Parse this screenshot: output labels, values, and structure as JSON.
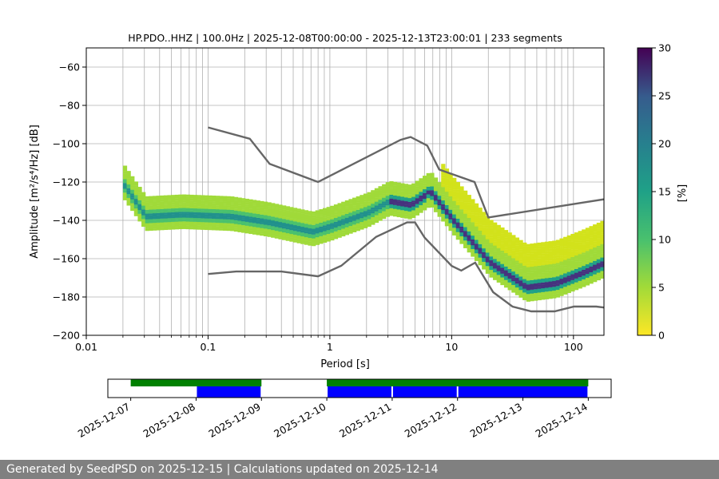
{
  "chart_data": {
    "type": "heatmap",
    "title": "HP.PDO..HHZ | 100.0Hz | 2025-12-08T00:00:00 - 2025-12-13T23:00:01 | 233 segments",
    "xlabel": "Period [s]",
    "ylabel": "Amplitude [m²/s⁴/Hz] [dB]",
    "x_scale": "log",
    "xlim": [
      0.01,
      178
    ],
    "ylim": [
      -200,
      -50
    ],
    "x_ticks": [
      0.01,
      0.1,
      1,
      10,
      100
    ],
    "x_tick_labels": [
      "0.01",
      "0.1",
      "1",
      "10",
      "100"
    ],
    "y_ticks": [
      -200,
      -180,
      -160,
      -140,
      -120,
      -100,
      -80,
      -60
    ],
    "y_tick_labels": [
      "−200",
      "−180",
      "−160",
      "−140",
      "−120",
      "−100",
      "−80",
      "−60"
    ],
    "grid": true,
    "colorbar": {
      "label": "[%]",
      "range": [
        0,
        30
      ],
      "ticks": [
        0,
        5,
        10,
        15,
        20,
        25,
        30
      ],
      "tick_labels": [
        "0",
        "5",
        "10",
        "15",
        "20",
        "25",
        "30"
      ],
      "colormap": "viridis"
    },
    "noise_models": [
      {
        "points": [
          [
            0.1,
            -91.5
          ],
          [
            0.22,
            -97.4
          ],
          [
            0.32,
            -110.5
          ],
          [
            0.8,
            -120.0
          ],
          [
            3.8,
            -98.0
          ],
          [
            4.6,
            -96.5
          ],
          [
            6.3,
            -101.0
          ],
          [
            7.9,
            -113.5
          ],
          [
            15.4,
            -120.0
          ],
          [
            20.0,
            -138.5
          ],
          [
            354.8,
            -126.0
          ]
        ]
      },
      {
        "points": [
          [
            0.1,
            -168.0
          ],
          [
            0.17,
            -166.7
          ],
          [
            0.4,
            -166.7
          ],
          [
            0.8,
            -169.2
          ],
          [
            1.24,
            -163.7
          ],
          [
            2.4,
            -148.6
          ],
          [
            4.3,
            -141.1
          ],
          [
            5.0,
            -141.1
          ],
          [
            6.0,
            -149.0
          ],
          [
            10.0,
            -163.8
          ],
          [
            12.0,
            -166.2
          ],
          [
            15.6,
            -162.1
          ],
          [
            21.9,
            -177.5
          ],
          [
            31.6,
            -185.0
          ],
          [
            45.0,
            -187.5
          ],
          [
            70.0,
            -187.5
          ],
          [
            101.0,
            -185.0
          ],
          [
            154.0,
            -185.0
          ],
          [
            328.0,
            -187.5
          ]
        ]
      }
    ],
    "density_profile": {
      "mode_points": [
        [
          0.02,
          -122
        ],
        [
          0.03,
          -138
        ],
        [
          0.06,
          -137
        ],
        [
          0.15,
          -138
        ],
        [
          0.3,
          -141
        ],
        [
          0.7,
          -146
        ],
        [
          1.0,
          -143
        ],
        [
          2.0,
          -136
        ],
        [
          3.0,
          -130
        ],
        [
          4.5,
          -132
        ],
        [
          6.5,
          -125
        ],
        [
          10.0,
          -140
        ],
        [
          20.0,
          -162
        ],
        [
          40.0,
          -175
        ],
        [
          70.0,
          -173
        ],
        [
          120.0,
          -167
        ],
        [
          178.0,
          -162
        ]
      ]
    }
  },
  "timeline": {
    "date_labels": [
      "2025-12-07",
      "2025-12-08",
      "2025-12-09",
      "2025-12-10",
      "2025-12-11",
      "2025-12-12",
      "2025-12-13",
      "2025-12-14"
    ],
    "range_days": [
      -0.35,
      7.35
    ],
    "available_ranges": [
      [
        0,
        2
      ],
      [
        3,
        7
      ]
    ],
    "segment_blocks": [
      [
        1,
        2
      ],
      [
        3,
        4
      ],
      [
        4,
        5
      ],
      [
        5,
        7
      ]
    ],
    "colors": {
      "available": "#008000",
      "segments": "#0000ff"
    }
  },
  "footer": {
    "text": "Generated by SeedPSD on 2025-12-15 | Calculations updated on 2025-12-14"
  }
}
